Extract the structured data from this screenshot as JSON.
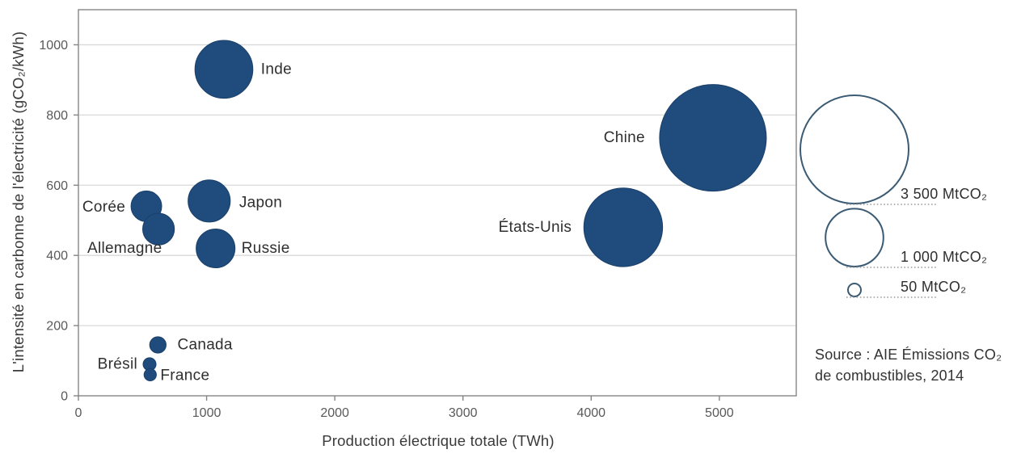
{
  "colors": {
    "bubble_fill": "#1F4B7D",
    "bubble_edge": "#1A4069",
    "legend_outline": "#3B5B74",
    "grid": "#D9D9D9",
    "axis": "#858585",
    "tick_text": "#595959",
    "label_text": "#2F2F2F"
  },
  "chart_data": {
    "type": "bubble",
    "title": "",
    "xlabel": "Production électrique totale (TWh)",
    "ylabel": "L'intensité en carbonne de l'électricité (gCO₂/kWh)",
    "xlim": [
      0,
      5600
    ],
    "ylim": [
      0,
      1100
    ],
    "x_ticks": [
      0,
      1000,
      2000,
      3000,
      4000,
      5000
    ],
    "y_ticks": [
      0,
      200,
      400,
      600,
      800,
      1000
    ],
    "grid": "horizontal gridlines only, plot area framed",
    "legend_position": "right of plot",
    "size_scale_note": "bubble area proportional to MtCO₂ emissions",
    "points": [
      {
        "label": "Inde",
        "x": 1135,
        "y": 930,
        "size_mtco2": 1000,
        "label_side": "right",
        "label_gap": 10,
        "label_dy": 0
      },
      {
        "label": "Chine",
        "x": 4950,
        "y": 735,
        "size_mtco2": 3400,
        "label_side": "left",
        "label_gap": 18,
        "label_dy": 0
      },
      {
        "label": "États-Unis",
        "x": 4250,
        "y": 480,
        "size_mtco2": 1850,
        "label_side": "left",
        "label_gap": 15,
        "label_dy": 0
      },
      {
        "label": "Japon",
        "x": 1020,
        "y": 555,
        "size_mtco2": 530,
        "label_side": "right",
        "label_gap": 11,
        "label_dy": 2
      },
      {
        "label": "Corée",
        "x": 530,
        "y": 540,
        "size_mtco2": 280,
        "label_side": "left",
        "label_gap": 7,
        "label_dy": 1
      },
      {
        "label": "Allemagne",
        "x": 625,
        "y": 475,
        "size_mtco2": 300,
        "label_side": "left",
        "label_gap": -24,
        "label_dy": 24
      },
      {
        "label": "Russie",
        "x": 1070,
        "y": 420,
        "size_mtco2": 450,
        "label_side": "right",
        "label_gap": 8,
        "label_dy": 0
      },
      {
        "label": "Canada",
        "x": 620,
        "y": 145,
        "size_mtco2": 80,
        "label_side": "right",
        "label_gap": 14,
        "label_dy": 0
      },
      {
        "label": "Brésil",
        "x": 555,
        "y": 90,
        "size_mtco2": 50,
        "label_side": "left",
        "label_gap": 7,
        "label_dy": 0
      },
      {
        "label": "France",
        "x": 560,
        "y": 60,
        "size_mtco2": 45,
        "label_side": "right",
        "label_gap": 5,
        "label_dy": 1
      }
    ],
    "size_legend": [
      {
        "label": "3 500 MtCO₂",
        "value": 3500
      },
      {
        "label": "1 000 MtCO₂",
        "value": 1000
      },
      {
        "label": "50 MtCO₂",
        "value": 50
      }
    ]
  },
  "source": {
    "line1": "Source : AIE Émissions CO₂",
    "line2": "de combustibles, 2014"
  }
}
